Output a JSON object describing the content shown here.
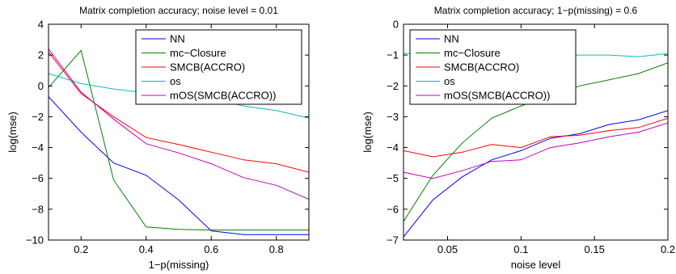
{
  "chart_data": [
    {
      "type": "line",
      "title": "Matrix completion accuracy; noise level = 0.01",
      "xlabel": "1−p(missing)",
      "ylabel": "log(mse)",
      "xlim": [
        0.1,
        0.9
      ],
      "ylim": [
        -10,
        4
      ],
      "xticks": [
        0.2,
        0.4,
        0.6,
        0.8
      ],
      "xtick_labels": [
        "0.2",
        "0.4",
        "0.6",
        "0.8"
      ],
      "yticks": [
        -10,
        -8,
        -6,
        -4,
        -2,
        0,
        2,
        4
      ],
      "ytick_labels": [
        "−10",
        "−8",
        "−6",
        "−4",
        "−2",
        "0",
        "2",
        "4"
      ],
      "grid": false,
      "legend_position": "top-right",
      "x": [
        0.1,
        0.2,
        0.3,
        0.4,
        0.5,
        0.6,
        0.7,
        0.8,
        0.9
      ],
      "series": [
        {
          "name": "NN",
          "color": "#0000ff",
          "values": [
            -0.7,
            -3.0,
            -5.0,
            -5.8,
            -7.4,
            -9.4,
            -9.65,
            -9.65,
            -9.65
          ]
        },
        {
          "name": "mc−Closure",
          "color": "#007f00",
          "values": [
            -0.1,
            2.3,
            -6.1,
            -9.15,
            -9.3,
            -9.35,
            -9.35,
            -9.35,
            -9.35
          ]
        },
        {
          "name": "SMCB(ACCRO)",
          "color": "#ff0000",
          "values": [
            2.2,
            -0.5,
            -2.0,
            -3.35,
            -3.8,
            -4.3,
            -4.8,
            -5.05,
            -5.6
          ]
        },
        {
          "name": "os",
          "color": "#00bfbf",
          "values": [
            0.8,
            0.15,
            -0.2,
            -0.45,
            -0.65,
            -0.85,
            -1.3,
            -1.6,
            -2.1
          ]
        },
        {
          "name": "mOS(SMCB(ACCRO))",
          "color": "#bf00bf",
          "values": [
            2.4,
            -0.4,
            -2.15,
            -3.75,
            -4.35,
            -5.05,
            -5.95,
            -6.45,
            -7.35
          ]
        }
      ]
    },
    {
      "type": "line",
      "title": "Matrix completion accuracy; 1−p(missing) = 0.6",
      "xlabel": "noise level",
      "ylabel": "log(mse)",
      "xlim": [
        0.02,
        0.2
      ],
      "ylim": [
        -7,
        0
      ],
      "xticks": [
        0.05,
        0.1,
        0.15,
        0.2
      ],
      "xtick_labels": [
        "0.05",
        "0.1",
        "0.15",
        "0.2"
      ],
      "yticks": [
        -7,
        -6,
        -5,
        -4,
        -3,
        -2,
        -1,
        0
      ],
      "ytick_labels": [
        "−7",
        "−6",
        "−5",
        "−4",
        "−3",
        "−2",
        "−1",
        "0"
      ],
      "grid": false,
      "legend_position": "top-left",
      "x": [
        0.02,
        0.04,
        0.06,
        0.08,
        0.1,
        0.12,
        0.14,
        0.16,
        0.18,
        0.2
      ],
      "series": [
        {
          "name": "NN",
          "color": "#0000ff",
          "values": [
            -6.9,
            -5.7,
            -4.95,
            -4.4,
            -4.1,
            -3.7,
            -3.55,
            -3.25,
            -3.1,
            -2.8
          ]
        },
        {
          "name": "mc−Closure",
          "color": "#007f00",
          "values": [
            -6.4,
            -4.9,
            -3.85,
            -3.05,
            -2.65,
            -2.3,
            -2.0,
            -1.8,
            -1.6,
            -1.25
          ]
        },
        {
          "name": "SMCB(ACCRO)",
          "color": "#ff0000",
          "values": [
            -4.1,
            -4.3,
            -4.15,
            -3.9,
            -4.0,
            -3.65,
            -3.6,
            -3.45,
            -3.35,
            -3.05
          ]
        },
        {
          "name": "os",
          "color": "#00bfbf",
          "values": [
            -0.95,
            -0.95,
            -0.95,
            -0.95,
            -0.95,
            -1.0,
            -1.0,
            -1.0,
            -1.05,
            -0.95
          ]
        },
        {
          "name": "mOS(SMCB(ACCRO))",
          "color": "#bf00bf",
          "values": [
            -4.8,
            -5.0,
            -4.75,
            -4.45,
            -4.4,
            -4.0,
            -3.85,
            -3.65,
            -3.5,
            -3.2
          ]
        }
      ]
    }
  ]
}
